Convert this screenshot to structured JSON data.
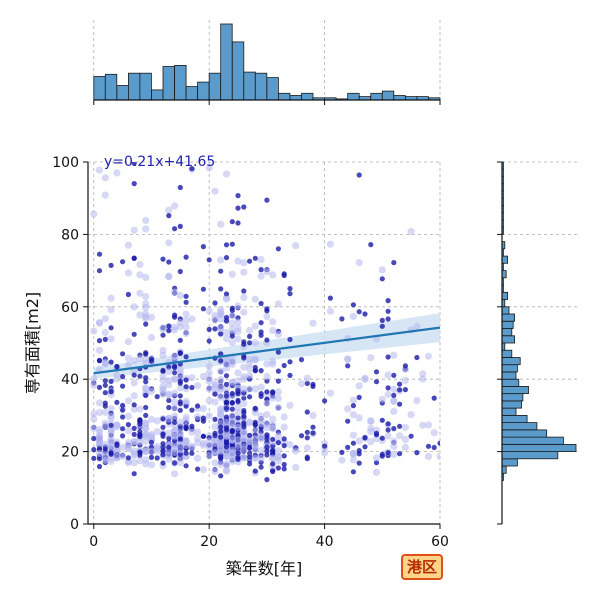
{
  "chart_data": {
    "type": "scatter",
    "xlabel": "築年数[年]",
    "ylabel": "専有面積[m2]",
    "xlim": [
      -1,
      60
    ],
    "ylim": [
      0,
      100
    ],
    "x_ticks": [
      0,
      20,
      40,
      60
    ],
    "y_ticks": [
      0,
      20,
      40,
      60,
      80,
      100
    ],
    "grid": true,
    "regression": {
      "label": "y=0.21x+41.65",
      "slope": 0.21,
      "intercept": 41.65,
      "color": "#1f77b4",
      "band_color": "#c6dbef"
    },
    "point_colors": {
      "light": "#b5b8ee",
      "dark": "#1a1aa8"
    },
    "marginal_x_hist": {
      "bin_edges": [
        0,
        2,
        4,
        6,
        8,
        10,
        12,
        14,
        16,
        18,
        20,
        22,
        24,
        26,
        28,
        30,
        32,
        34,
        36,
        38,
        40,
        42,
        44,
        46,
        48,
        50,
        52,
        54,
        56,
        58,
        60
      ],
      "counts": [
        21,
        23,
        13,
        24,
        24,
        9,
        30,
        31,
        12,
        16,
        24,
        68,
        52,
        25,
        24,
        20,
        6,
        4,
        6,
        2,
        2,
        1,
        6,
        3,
        6,
        8,
        4,
        3,
        3,
        2
      ],
      "color": "#5b9bcc"
    },
    "marginal_y_hist": {
      "bin_edges": [
        0,
        2,
        4,
        6,
        8,
        10,
        12,
        14,
        16,
        18,
        20,
        22,
        24,
        26,
        28,
        30,
        32,
        34,
        36,
        38,
        40,
        42,
        44,
        46,
        48,
        50,
        52,
        54,
        56,
        58,
        60,
        62,
        64,
        66,
        68,
        70,
        72,
        74,
        76,
        78,
        80,
        82,
        84,
        86,
        88,
        90,
        92,
        94,
        96,
        98,
        100
      ],
      "counts": [
        0,
        0,
        0,
        0,
        0,
        0,
        1,
        3,
        11,
        40,
        53,
        44,
        32,
        25,
        18,
        10,
        14,
        15,
        19,
        12,
        10,
        11,
        13,
        7,
        2,
        9,
        7,
        8,
        9,
        5,
        2,
        4,
        1,
        1,
        3,
        1,
        4,
        1,
        2,
        0,
        1,
        1,
        1,
        1,
        1,
        1,
        1,
        1,
        1,
        1
      ],
      "color": "#5b9bcc"
    }
  },
  "badge": {
    "label": "港区"
  }
}
